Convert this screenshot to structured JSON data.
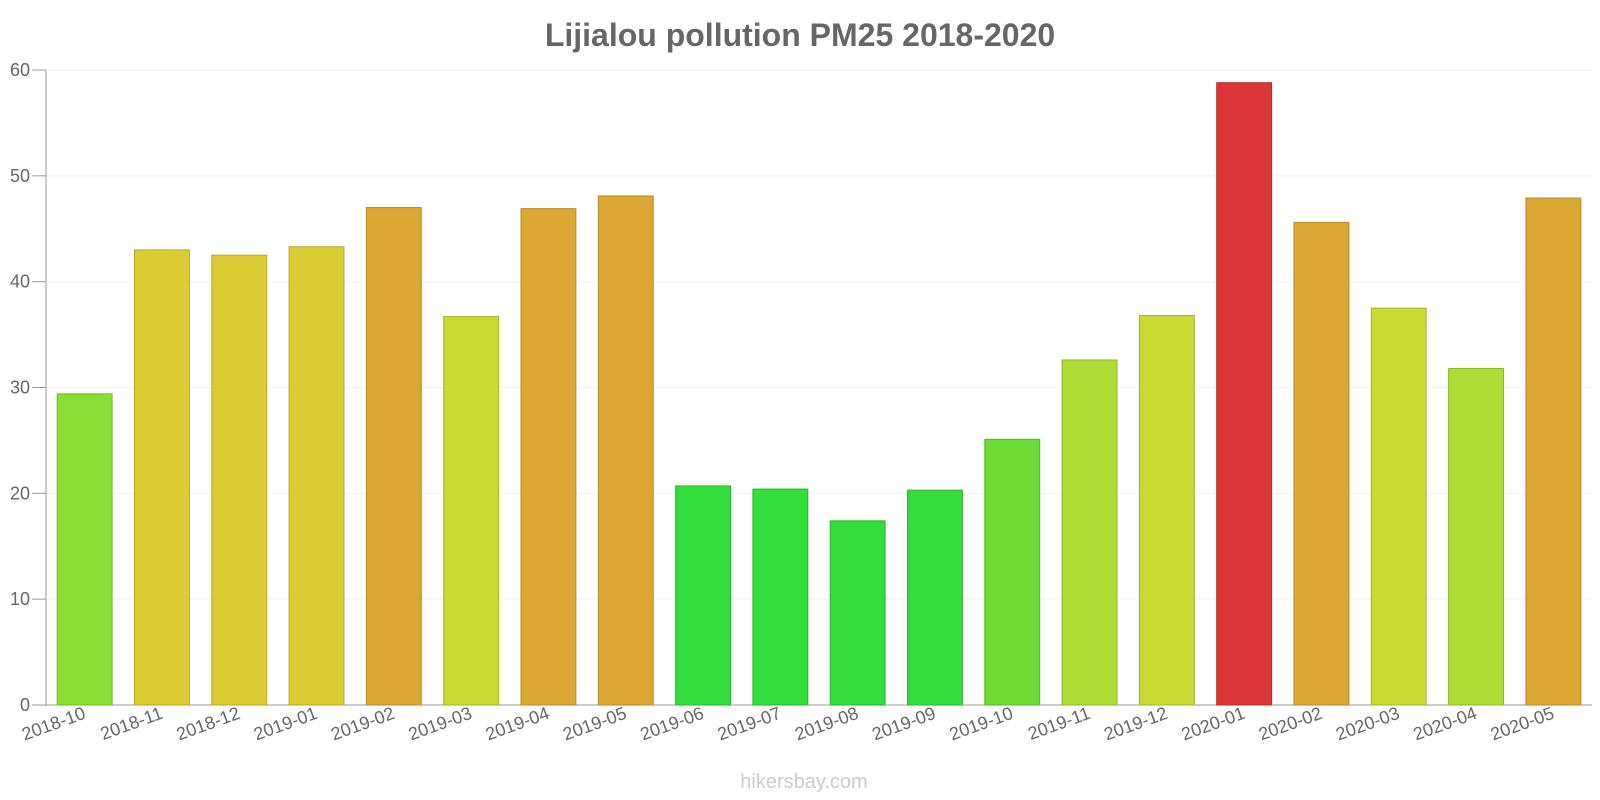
{
  "chart_data": {
    "type": "bar",
    "title": "Lijialou pollution PM25 2018-2020",
    "xlabel": "",
    "ylabel": "",
    "ylim": [
      0,
      60
    ],
    "yticks": [
      0,
      10,
      20,
      30,
      40,
      50,
      60
    ],
    "grid": true,
    "categories": [
      "2018-10",
      "2018-11",
      "2018-12",
      "2019-01",
      "2019-02",
      "2019-03",
      "2019-04",
      "2019-05",
      "2019-06",
      "2019-07",
      "2019-08",
      "2019-09",
      "2019-10",
      "2019-11",
      "2019-12",
      "2020-01",
      "2020-02",
      "2020-03",
      "2020-04",
      "2020-05"
    ],
    "values": [
      29.4,
      43.0,
      42.5,
      43.3,
      47.0,
      36.7,
      46.9,
      48.1,
      20.7,
      20.4,
      17.4,
      20.3,
      25.1,
      32.6,
      36.8,
      58.8,
      45.6,
      37.5,
      31.8,
      47.9
    ],
    "colors": [
      "#8adf35",
      "#dccc33",
      "#dccc33",
      "#dccc33",
      "#dca832",
      "#cbd933",
      "#dca832",
      "#dca832",
      "#33dd3a",
      "#33dd3a",
      "#33dd3a",
      "#33dd3a",
      "#6cdd35",
      "#addd34",
      "#cbd933",
      "#da3636",
      "#dca832",
      "#cbd933",
      "#addd34",
      "#dca832"
    ]
  },
  "watermark": "hikersbay.com"
}
